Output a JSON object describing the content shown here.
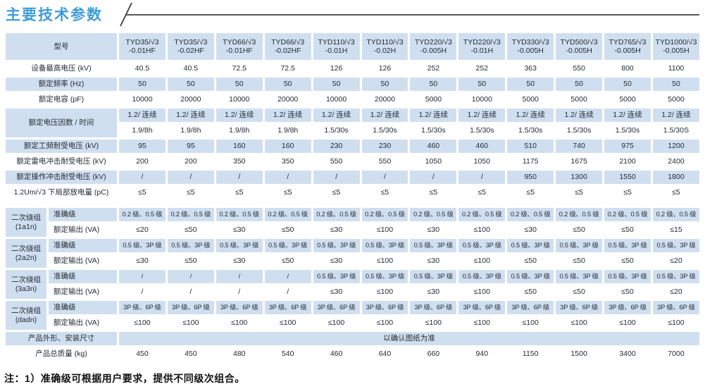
{
  "title": "主要技术参数",
  "note": "注：1）准确级可根据用户要求，提供不同级次组合。",
  "colors": {
    "accent_title_blue": "#3e9cd8",
    "cell_light_blue": "#d0dff0",
    "rule_line": "#3f3f3f",
    "text": "#242b34"
  },
  "table": {
    "model_label": "型号",
    "models": [
      {
        "l1": "TYD35/√3",
        "l2": "-0.01HF"
      },
      {
        "l1": "TYD35/√3",
        "l2": "-0.02HF"
      },
      {
        "l1": "TYD66/√3",
        "l2": "-0.01HF"
      },
      {
        "l1": "TYD66/√3",
        "l2": "-0.02HF"
      },
      {
        "l1": "TYD110/√3",
        "l2": "-0.01H"
      },
      {
        "l1": "TYD110/√3",
        "l2": "-0.02H"
      },
      {
        "l1": "TYD220/√3",
        "l2": "-0.005H"
      },
      {
        "l1": "TYD220/√3",
        "l2": "-0.01H"
      },
      {
        "l1": "TYD330/√3",
        "l2": "-0.005H"
      },
      {
        "l1": "TYD500/√3",
        "l2": "-0.005H"
      },
      {
        "l1": "TYD765/√3",
        "l2": "-0.005H"
      },
      {
        "l1": "TYD1000/√3",
        "l2": "-0.005H"
      }
    ],
    "sections": [
      {
        "type": "simple",
        "shade": false,
        "label": "设备最高电压 (kV)",
        "values": [
          "40.5",
          "40.5",
          "72.5",
          "72.5",
          "126",
          "126",
          "252",
          "252",
          "363",
          "550",
          "800",
          "1100"
        ]
      },
      {
        "type": "simple",
        "shade": true,
        "label": "额定频率 (Hz)",
        "values": [
          "50",
          "50",
          "50",
          "50",
          "50",
          "50",
          "50",
          "50",
          "50",
          "50",
          "50",
          "50"
        ]
      },
      {
        "type": "simple",
        "shade": false,
        "label": "额定电容 (pF)",
        "values": [
          "10000",
          "20000",
          "10000",
          "20000",
          "10000",
          "20000",
          "5000",
          "10000",
          "5000",
          "5000",
          "5000",
          "5000"
        ]
      },
      {
        "type": "group",
        "label": "额定电压因数 / 时间",
        "rows": [
          {
            "shade": true,
            "values": [
              "1.2/ 连续",
              "1.2/ 连续",
              "1.2/ 连续",
              "1.2/ 连续",
              "1.2/ 连续",
              "1.2/ 连续",
              "1.2/ 连续",
              "1.2/ 连续",
              "1.2/ 连续",
              "1.2/ 连续",
              "1.2/ 连续",
              "1.2/ 连续"
            ]
          },
          {
            "shade": false,
            "values": [
              "1.9/8h",
              "1.9/8h",
              "1.9/8h",
              "1.9/8h",
              "1.5/30s",
              "1.5/30s",
              "1.5/30s",
              "1.5/30s",
              "1.5/30s",
              "1.5/30s",
              "1.5/30s",
              "1.5/30S"
            ]
          }
        ]
      },
      {
        "type": "simple",
        "shade": true,
        "label": "额定工频耐受电压 (kV)",
        "values": [
          "95",
          "95",
          "160",
          "160",
          "230",
          "230",
          "460",
          "460",
          "510",
          "740",
          "975",
          "1200"
        ]
      },
      {
        "type": "simple",
        "shade": false,
        "label": "额定雷电冲击耐受电压 (kV)",
        "values": [
          "200",
          "200",
          "350",
          "350",
          "550",
          "550",
          "1050",
          "1050",
          "1175",
          "1675",
          "2100",
          "2400"
        ]
      },
      {
        "type": "simple",
        "shade": true,
        "label": "额定操作冲击耐受电压 (kV)",
        "values": [
          "/",
          "/",
          "/",
          "/",
          "/",
          "/",
          "/",
          "/",
          "950",
          "1300",
          "1550",
          "1800"
        ]
      },
      {
        "type": "simple",
        "shade": false,
        "label": "1.2Um/√3 下局部放电量 (pC)",
        "values": [
          "≤5",
          "≤5",
          "≤5",
          "≤5",
          "≤5",
          "≤5",
          "≤5",
          "≤5",
          "≤5",
          "≤5",
          "≤5",
          "≤5"
        ]
      },
      {
        "type": "spacer"
      },
      {
        "type": "winding",
        "group": "二次绕组",
        "tap": "(1a1n)",
        "rows": [
          {
            "label": "准确级",
            "shade": true,
            "acc": true,
            "values": [
              "0.2 级、0.5 级",
              "0.2 级、0.5 级",
              "0.2 级、0.5 级",
              "0.2 级、0.5 级",
              "0.2 级、0.5 级",
              "0.2 级、0.5 级",
              "0.2 级、0.5 级",
              "0.2 级、0.5 级",
              "0.2 级、0.5 级",
              "0.2 级、0.5 级",
              "0.2 级、0.5 级",
              "0.2 级、0.5 级"
            ]
          },
          {
            "label": "额定输出 (VA)",
            "shade": false,
            "acc": false,
            "values": [
              "≤20",
              "≤50",
              "≤30",
              "≤50",
              "≤30",
              "≤100",
              "≤30",
              "≤100",
              "≤30",
              "≤50",
              "≤50",
              "≤15"
            ]
          }
        ]
      },
      {
        "type": "winding",
        "group": "二次绕组",
        "tap": "(2a2n)",
        "rows": [
          {
            "label": "准确级",
            "shade": true,
            "acc": true,
            "values": [
              "0.5 级、3P 级",
              "0.5 级、3P 级",
              "0.5 级、3P 级",
              "0.5 级、3P 级",
              "0.5 级、3P 级",
              "0.5 级、3P 级",
              "0.5 级、3P 级",
              "0.5 级、3P 级",
              "0.5 级、3P 级",
              "0.5 级、3P 级",
              "0.5 级、3P 级",
              "0.5 级、3P 级"
            ]
          },
          {
            "label": "额定输出 (VA)",
            "shade": false,
            "acc": false,
            "values": [
              "≤30",
              "≤50",
              "≤30",
              "≤50",
              "≤30",
              "≤100",
              "≤30",
              "≤100",
              "≤50",
              "≤50",
              "≤50",
              "≤20"
            ]
          }
        ]
      },
      {
        "type": "winding",
        "group": "二次绕组",
        "tap": "(3a3n)",
        "rows": [
          {
            "label": "准确级",
            "shade": true,
            "acc": true,
            "values": [
              "/",
              "/",
              "/",
              "/",
              "0.5 级、3P 级",
              "0.5 级、3P 级",
              "0.5 级、3P 级",
              "0.5 级、3P 级",
              "0.5 级、3P 级",
              "0.5 级、3P 级",
              "0.5 级、3P 级",
              "0.5 级、3P 级"
            ]
          },
          {
            "label": "额定输出 (VA)",
            "shade": false,
            "acc": false,
            "values": [
              "/",
              "/",
              "/",
              "/",
              "≤30",
              "≤100",
              "≤30",
              "≤100",
              "≤50",
              "≤50",
              "≤50",
              "≤20"
            ]
          }
        ]
      },
      {
        "type": "winding",
        "group": "二次绕组",
        "tap": "(dadn)",
        "rows": [
          {
            "label": "准确级",
            "shade": true,
            "acc": true,
            "values": [
              "3P 级、6P 级",
              "3P 级、6P 级",
              "3P 级、6P 级",
              "3P 级、6P 级",
              "3P 级、6P 级",
              "3P 级、6P 级",
              "3P 级、6P 级",
              "3P 级、6P 级",
              "3P 级、6P 级",
              "3P 级、6P 级",
              "3P 级、6P 级",
              "3P 级、6P 级"
            ]
          },
          {
            "label": "额定输出 (VA)",
            "shade": false,
            "acc": false,
            "values": [
              "≤100",
              "≤100",
              "≤100",
              "≤100",
              "≤100",
              "≤100",
              "≤100",
              "≤100",
              "≤100",
              "≤100",
              "≤100",
              "≤100"
            ]
          }
        ]
      },
      {
        "type": "span",
        "shade": true,
        "label": "产品外形、安装尺寸",
        "value": "以确认图纸为准"
      },
      {
        "type": "simple",
        "shade": false,
        "label": "产品总质量 (kg)",
        "values": [
          "450",
          "450",
          "480",
          "540",
          "460",
          "640",
          "660",
          "940",
          "1150",
          "1500",
          "3400",
          "7000"
        ]
      }
    ]
  }
}
